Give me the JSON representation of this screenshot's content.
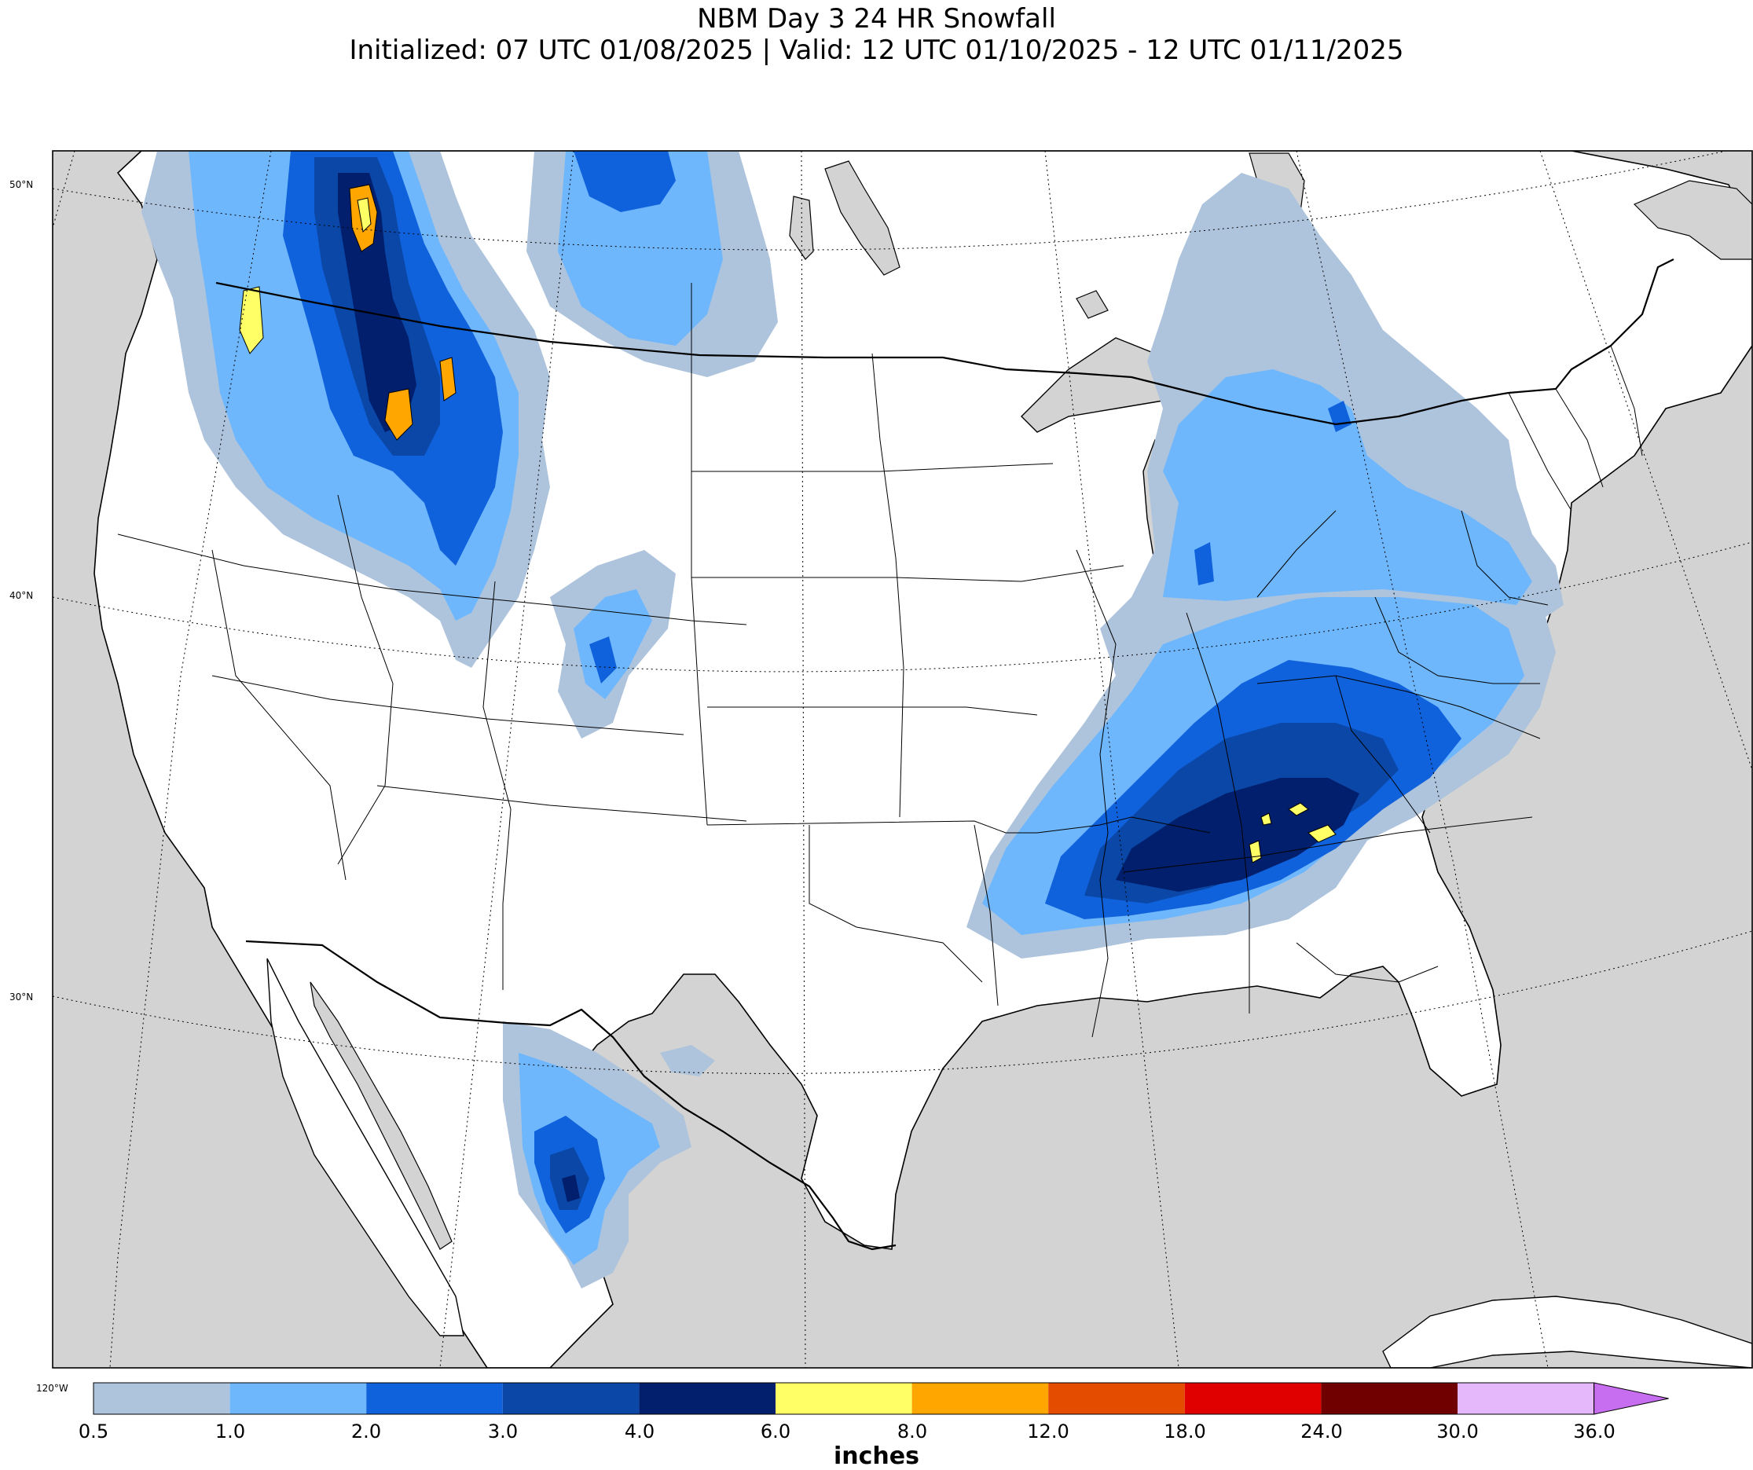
{
  "title": {
    "line1": "NBM Day 3 24 HR Snowfall",
    "line2": "Initialized: 07 UTC 01/08/2025 | Valid: 12 UTC 01/10/2025 - 12 UTC 01/11/2025"
  },
  "map": {
    "latitude_labels": [
      "50°N",
      "40°N",
      "30°N"
    ],
    "longitude_labels": [
      "120°W"
    ],
    "colors": {
      "land": "#ffffff",
      "water": "#d3d3d3",
      "borders": "#000000"
    }
  },
  "colorbar": {
    "units": "inches",
    "ticks": [
      "0.5",
      "1.0",
      "2.0",
      "3.0",
      "4.0",
      "6.0",
      "8.0",
      "12.0",
      "18.0",
      "24.0",
      "30.0",
      "36.0"
    ],
    "colors": [
      "#aec4dc",
      "#6fb7fc",
      "#1062dc",
      "#0a47a6",
      "#011f6d",
      "#ffff66",
      "#ffa600",
      "#e44d00",
      "#e00000",
      "#700000",
      "#e5b8fb",
      "#c76df0"
    ]
  }
}
